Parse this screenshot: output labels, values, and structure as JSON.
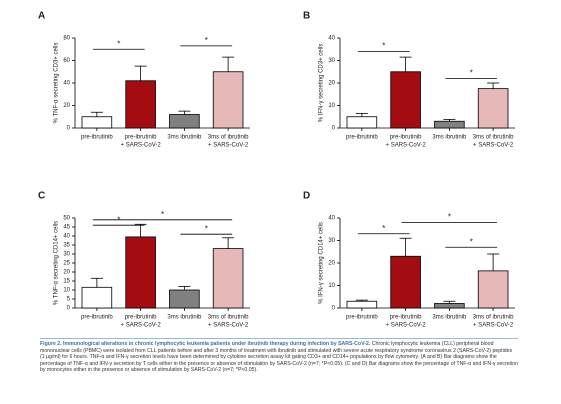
{
  "chart_data": [
    {
      "type": "bar",
      "panel": "A",
      "ylabel": "% TNF-α secreting CD3+ cells",
      "categories": [
        [
          "pre-ibrutinib"
        ],
        [
          "pre-ibrutinib",
          "+ SARS-CoV-2"
        ],
        [
          "3ms ibrutinib"
        ],
        [
          "3ms of ibrutinib",
          "+ SARS-CoV-2"
        ]
      ],
      "values": [
        10,
        42,
        12,
        50
      ],
      "errors": [
        4,
        13,
        3,
        13
      ],
      "colors": [
        "#ffffff",
        "#a30d12",
        "#808080",
        "#e6b8b7"
      ],
      "ylim": [
        0,
        80
      ],
      "yticks": [
        0,
        20,
        40,
        60,
        80
      ],
      "brackets": [
        {
          "from": 0,
          "to": 1,
          "y": 70,
          "label": "*"
        },
        {
          "from": 2,
          "to": 3,
          "y": 73,
          "label": "*"
        }
      ]
    },
    {
      "type": "bar",
      "panel": "B",
      "ylabel": "% IFN-γ secreting CD3+ cells",
      "categories": [
        [
          "pre-ibrutinib"
        ],
        [
          "pre-ibrutinib",
          "+ SARS-CoV-2"
        ],
        [
          "3ms ibrutinib"
        ],
        [
          "3ms of ibrutinib",
          "+ SARS-CoV-2"
        ]
      ],
      "values": [
        5,
        25,
        3,
        17.5
      ],
      "errors": [
        1.5,
        6.5,
        0.8,
        2.5
      ],
      "colors": [
        "#ffffff",
        "#a30d12",
        "#808080",
        "#e6b8b7"
      ],
      "ylim": [
        0,
        40
      ],
      "yticks": [
        0,
        10,
        20,
        30,
        40
      ],
      "brackets": [
        {
          "from": 0,
          "to": 1,
          "y": 34,
          "label": "*"
        },
        {
          "from": 2,
          "to": 3,
          "y": 22,
          "label": "*"
        }
      ]
    },
    {
      "type": "bar",
      "panel": "C",
      "ylabel": "% TNF-α secreting CD14+ cells",
      "categories": [
        [
          "pre-ibrutinib"
        ],
        [
          "pre-ibrutinib",
          "+ SARS-CoV-2"
        ],
        [
          "3ms ibrutinib"
        ],
        [
          "3ms of ibrutinib",
          "+ SARS-CoV-2"
        ]
      ],
      "values": [
        11.5,
        39.5,
        10,
        33
      ],
      "errors": [
        5,
        7,
        2,
        6
      ],
      "colors": [
        "#ffffff",
        "#a30d12",
        "#808080",
        "#e6b8b7"
      ],
      "ylim": [
        0,
        50
      ],
      "yticks": [
        0,
        5,
        10,
        15,
        20,
        25,
        30,
        35,
        40,
        45,
        50
      ],
      "brackets": [
        {
          "from": 0,
          "to": 1,
          "y": 46,
          "label": "*"
        },
        {
          "from": 0,
          "to": 3,
          "y": 49,
          "label": "*"
        },
        {
          "from": 2,
          "to": 3,
          "y": 41,
          "label": "*"
        }
      ]
    },
    {
      "type": "bar",
      "panel": "D",
      "ylabel": "% IFN-γ secreting CD14+ cells",
      "categories": [
        [
          "pre-ibrutinib"
        ],
        [
          "pre-ibrutinib",
          "+ SARS-CoV-2"
        ],
        [
          "3ms ibrutinib"
        ],
        [
          "3ms of ibrutinib",
          "+ SARS-CoV-2"
        ]
      ],
      "values": [
        3,
        23,
        2,
        16.5
      ],
      "errors": [
        0.5,
        8,
        1,
        7.5
      ],
      "colors": [
        "#ffffff",
        "#a30d12",
        "#808080",
        "#e6b8b7"
      ],
      "ylim": [
        0,
        40
      ],
      "yticks": [
        0,
        10,
        20,
        30,
        40
      ],
      "brackets": [
        {
          "from": 0,
          "to": 1,
          "y": 33,
          "label": "*"
        },
        {
          "from": 1,
          "to": 3,
          "y": 38,
          "label": "*"
        },
        {
          "from": 2,
          "to": 3,
          "y": 27,
          "label": "*"
        }
      ]
    }
  ],
  "caption": {
    "title": "Figure 2. Immunological alterations in chronic lymphocytic leukemia patients under ibrutinib therapy during infection by SARS-CoV-2.",
    "text": "Chronic lymphocytic leukemia (CLL) peripheral blood mononuclear cells (PBMC) were isolated from CLL patients before and after 3 months of treatment with ibrutinib and stimulated with severe acute respiratory syndrome coronavirus 2 (SARS-CoV-2) peptides (1 μg/ml) for 6 hours. TNF-α and IFN-γ secretion levels have been determined by cytokine secretion assay kit gating CD3+ and CD14+ populations by flow cytometry. (A and B) Bar diagrams show the percentage of TNF-α and IFN-γ secretion by T cells either in the presence or absence of stimulation by SARS-CoV-2 (n=7; *P<0.05). (C and D) Bar diagrams show the percentage of TNF-α and IFN-γ secretion by monocytes either in the presence or absence of stimulation by SARS-CoV-2 (n=7; *P<0.05)."
  }
}
